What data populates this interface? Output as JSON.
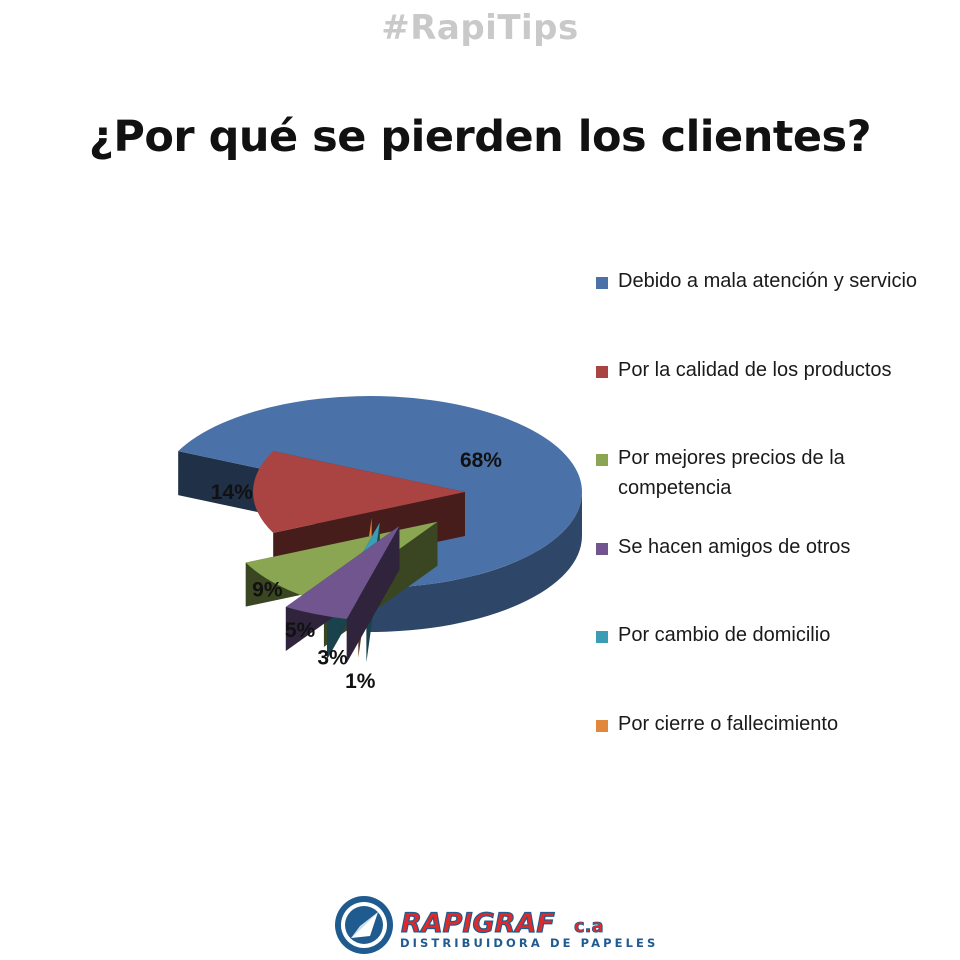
{
  "header": {
    "hashtag": "#RapiTips"
  },
  "chart_data": {
    "type": "pie",
    "title": "¿Por qué se pierden los clientes?",
    "categories": [
      "Debido a mala atención y servicio",
      "Por la calidad de los productos",
      "Por mejores precios de la competencia",
      "Se hacen amigos de otros",
      "Por cambio de domicilio",
      "Por cierre o fallecimiento"
    ],
    "values": [
      68,
      14,
      9,
      5,
      3,
      1
    ],
    "value_labels": [
      "68%",
      "14%",
      "9%",
      "5%",
      "3%",
      "1%"
    ],
    "colors": [
      "#4a72a8",
      "#a94442",
      "#8aa652",
      "#71558f",
      "#3b9cb4",
      "#e0883c"
    ],
    "legend_placement": "right",
    "style": "3d-exploded"
  },
  "footer": {
    "brand": "RAPIGRAF",
    "brand_suffix": "c.a",
    "tagline": "DISTRIBUIDORA DE PAPELES"
  }
}
